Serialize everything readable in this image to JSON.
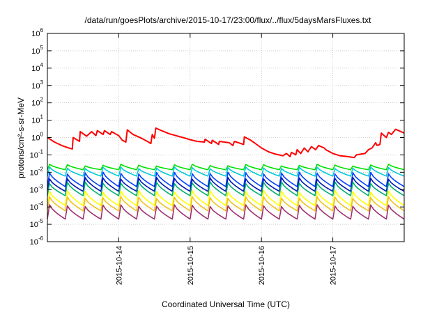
{
  "chart_data": {
    "type": "line",
    "title": "/data/run/goesPlots/archive/2015-10-17/23:00/flux/../flux/5daysMarsFluxes.txt",
    "xlabel": "Coordinated Universal Time (UTC)",
    "ylabel": "protons/cm²-s-sr-MeV",
    "y_scale": "log",
    "ylim": [
      1e-06,
      1000000.0
    ],
    "y_ticks": [
      {
        "base": "10",
        "exp": "-6",
        "value": 1e-06
      },
      {
        "base": "10",
        "exp": "-5",
        "value": 1e-05
      },
      {
        "base": "10",
        "exp": "-4",
        "value": 0.0001
      },
      {
        "base": "10",
        "exp": "-3",
        "value": 0.001
      },
      {
        "base": "10",
        "exp": "-2",
        "value": 0.01
      },
      {
        "base": "10",
        "exp": "-1",
        "value": 0.1
      },
      {
        "base": "10",
        "exp": "0",
        "value": 1
      },
      {
        "base": "10",
        "exp": "1",
        "value": 10
      },
      {
        "base": "10",
        "exp": "2",
        "value": 100
      },
      {
        "base": "10",
        "exp": "3",
        "value": 1000
      },
      {
        "base": "10",
        "exp": "4",
        "value": 10000
      },
      {
        "base": "10",
        "exp": "5",
        "value": 100000
      },
      {
        "base": "10",
        "exp": "6",
        "value": 1000000
      }
    ],
    "xlim": [
      "2015-10-13T00:00",
      "2015-10-18T00:00"
    ],
    "x_ticks": [
      "2015-10-14",
      "2015-10-15",
      "2015-10-16",
      "2015-10-17"
    ],
    "grid": true,
    "legend": "none",
    "series": [
      {
        "color": "#ff0000",
        "values": [
          [
            0.0,
            1.0
          ],
          [
            0.1,
            0.55
          ],
          [
            0.2,
            0.35
          ],
          [
            0.3,
            0.25
          ],
          [
            0.35,
            0.22
          ],
          [
            0.36,
            1.0
          ],
          [
            0.45,
            0.6
          ],
          [
            0.46,
            2.2
          ],
          [
            0.55,
            1.2
          ],
          [
            0.62,
            2.2
          ],
          [
            0.68,
            1.3
          ],
          [
            0.7,
            2.5
          ],
          [
            0.78,
            1.5
          ],
          [
            0.8,
            2.5
          ],
          [
            0.88,
            1.5
          ],
          [
            0.9,
            2.2
          ],
          [
            1.0,
            1.3
          ],
          [
            1.05,
            0.7
          ],
          [
            1.1,
            0.55
          ],
          [
            1.12,
            2.8
          ],
          [
            1.2,
            1.5
          ],
          [
            1.32,
            0.9
          ],
          [
            1.4,
            0.6
          ],
          [
            1.45,
            0.45
          ],
          [
            1.47,
            1.5
          ],
          [
            1.5,
            0.9
          ],
          [
            1.52,
            3.5
          ],
          [
            1.6,
            2.5
          ],
          [
            1.7,
            1.7
          ],
          [
            1.8,
            1.3
          ],
          [
            1.9,
            1.0
          ],
          [
            2.0,
            0.75
          ],
          [
            2.1,
            0.6
          ],
          [
            2.2,
            0.55
          ],
          [
            2.21,
            0.8
          ],
          [
            2.3,
            0.45
          ],
          [
            2.31,
            0.7
          ],
          [
            2.4,
            0.4
          ],
          [
            2.41,
            0.6
          ],
          [
            2.55,
            0.5
          ],
          [
            2.6,
            0.35
          ],
          [
            2.62,
            0.6
          ],
          [
            2.75,
            0.4
          ],
          [
            2.76,
            1.1
          ],
          [
            2.85,
            0.7
          ],
          [
            2.9,
            0.5
          ],
          [
            3.0,
            0.25
          ],
          [
            3.1,
            0.15
          ],
          [
            3.2,
            0.11
          ],
          [
            3.3,
            0.09
          ],
          [
            3.35,
            0.12
          ],
          [
            3.4,
            0.08
          ],
          [
            3.42,
            0.14
          ],
          [
            3.48,
            0.1
          ],
          [
            3.5,
            0.2
          ],
          [
            3.55,
            0.12
          ],
          [
            3.6,
            0.25
          ],
          [
            3.65,
            0.15
          ],
          [
            3.7,
            0.3
          ],
          [
            3.76,
            0.2
          ],
          [
            3.8,
            0.35
          ],
          [
            3.88,
            0.25
          ],
          [
            3.9,
            0.2
          ],
          [
            4.0,
            0.12
          ],
          [
            4.1,
            0.09
          ],
          [
            4.2,
            0.08
          ],
          [
            4.3,
            0.07
          ],
          [
            4.33,
            0.1
          ],
          [
            4.45,
            0.12
          ],
          [
            4.5,
            0.2
          ],
          [
            4.55,
            0.25
          ],
          [
            4.6,
            0.5
          ],
          [
            4.62,
            0.35
          ],
          [
            4.66,
            0.4
          ],
          [
            4.68,
            1.8
          ],
          [
            4.75,
            1.0
          ],
          [
            4.78,
            2.0
          ],
          [
            4.82,
            1.5
          ],
          [
            4.88,
            3.0
          ],
          [
            5.0,
            1.8
          ]
        ]
      },
      {
        "color": "#00e000",
        "base": 0.014,
        "top": 0.026
      },
      {
        "color": "#00c8d8",
        "base": 0.006,
        "top": 0.018
      },
      {
        "color": "#0040ff",
        "base": 0.0015,
        "top": 0.009
      },
      {
        "color": "#0018b0",
        "base": 0.0008,
        "top": 0.0045
      },
      {
        "color": "#00b070",
        "base": 0.00045,
        "top": 0.0025
      },
      {
        "color": "#ffff00",
        "base": 0.00012,
        "top": 0.0008
      },
      {
        "color": "#f0c020",
        "base": 6e-05,
        "top": 0.00035
      },
      {
        "color": "#a03070",
        "base": 2e-05,
        "top": 0.00012
      }
    ]
  }
}
